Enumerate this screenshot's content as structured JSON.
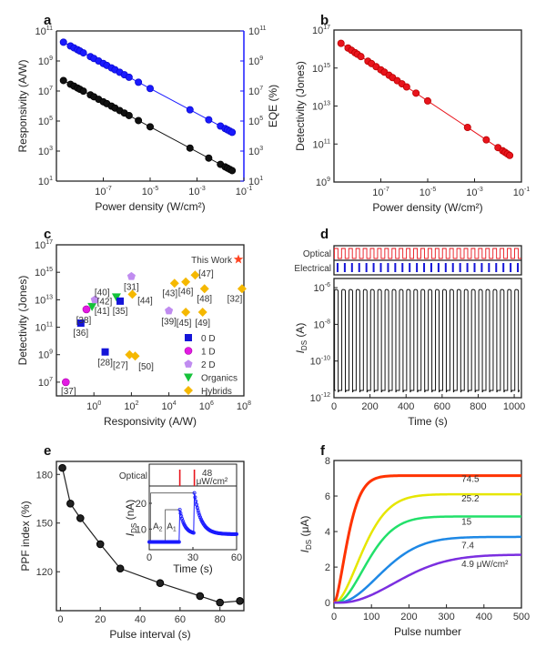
{
  "chart_data": [
    {
      "panel": "a",
      "type": "scatter",
      "xscale": "log",
      "xlabel": "Power density (W/cm²)",
      "ylabel": "Responsivity (A/W)",
      "y2label": "EQE (%)",
      "xlim_exp": [
        -9,
        -1
      ],
      "ylim_exp": [
        1,
        11
      ],
      "y2lim_exp": [
        1,
        11
      ],
      "xticks_exp": [
        -7,
        -5,
        -3,
        -1
      ],
      "yticks_exp": [
        1,
        3,
        5,
        7,
        9,
        11
      ],
      "y2ticks_exp": [
        1,
        3,
        5,
        7,
        9,
        11
      ],
      "x_exp": [
        -8.7,
        -8.4,
        -8.25,
        -8.1,
        -8.0,
        -7.85,
        -7.55,
        -7.4,
        -7.2,
        -7.0,
        -6.85,
        -6.65,
        -6.5,
        -6.3,
        -6.1,
        -5.9,
        -5.5,
        -5.0,
        -3.3,
        -2.5,
        -2.0,
        -1.8,
        -1.7,
        -1.6,
        -1.5
      ],
      "series": [
        {
          "name": "Responsivity",
          "axis": "left",
          "color": "#111111",
          "y_exp_start": 7.7,
          "y_exp_end": 1.7
        },
        {
          "name": "EQE",
          "axis": "right",
          "color": "#1a1aff",
          "y_exp_start": 10.25,
          "y_exp_end": 4.25
        }
      ]
    },
    {
      "panel": "b",
      "type": "scatter",
      "xscale": "log",
      "xlabel": "Power density (W/cm²)",
      "ylabel": "Detectivity (Jones)",
      "xlim_exp": [
        -9,
        -1
      ],
      "ylim_exp": [
        9,
        17
      ],
      "xticks_exp": [
        -7,
        -5,
        -3,
        -1
      ],
      "yticks_exp": [
        9,
        11,
        13,
        15,
        17
      ],
      "series": [
        {
          "name": "Detectivity",
          "color": "#e8141c",
          "y_exp_start": 16.3,
          "y_exp_end": 10.4
        }
      ]
    },
    {
      "panel": "c",
      "type": "scatter",
      "xlabel": "Responsivity (A/W)",
      "ylabel": "Detectivity (Jones)",
      "xlim_exp": [
        -2,
        8
      ],
      "ylim_exp": [
        6,
        17
      ],
      "xticks_exp": [
        0,
        2,
        4,
        6,
        8
      ],
      "yticks_exp": [
        7,
        9,
        11,
        13,
        15,
        17
      ],
      "this_work_label": "This Work",
      "legend": [
        {
          "name": "0 D",
          "marker": "square",
          "color": "#1414d8"
        },
        {
          "name": "1 D",
          "marker": "circle",
          "color": "#e21be2"
        },
        {
          "name": "2 D",
          "marker": "pentagon",
          "color": "#c08cf0"
        },
        {
          "name": "Organics",
          "marker": "triangle-down",
          "color": "#16c23a"
        },
        {
          "name": "Hybrids",
          "marker": "diamond",
          "color": "#f5b800"
        }
      ],
      "points": [
        {
          "ref": "[37]",
          "cls": "1 D",
          "x": -1.5,
          "y": 7.0
        },
        {
          "ref": "[36]",
          "cls": "0 D",
          "x": -0.7,
          "y": 11.3
        },
        {
          "ref": "[38]",
          "cls": "1 D",
          "x": -0.4,
          "y": 12.3
        },
        {
          "ref": "[41]",
          "cls": "Organics",
          "x": -0.1,
          "y": 12.5
        },
        {
          "ref": "[40]",
          "cls": "2 D",
          "x": 0.05,
          "y": 13.0
        },
        {
          "ref": "[42]",
          "cls": "Organics",
          "x": 1.2,
          "y": 13.2
        },
        {
          "ref": "[35]",
          "cls": "0 D",
          "x": 1.4,
          "y": 12.9
        },
        {
          "ref": "[28]",
          "cls": "0 D",
          "x": 0.6,
          "y": 9.2
        },
        {
          "ref": "[31]",
          "cls": "2 D",
          "x": 2.0,
          "y": 14.7
        },
        {
          "ref": "[44]",
          "cls": "Hybrids",
          "x": 2.05,
          "y": 13.4
        },
        {
          "ref": "[27]",
          "cls": "Hybrids",
          "x": 1.9,
          "y": 9.0
        },
        {
          "ref": "[50]",
          "cls": "Hybrids",
          "x": 2.2,
          "y": 8.9
        },
        {
          "ref": "[39]",
          "cls": "2 D",
          "x": 4.0,
          "y": 12.2
        },
        {
          "ref": "[43]",
          "cls": "Hybrids",
          "x": 4.3,
          "y": 14.2
        },
        {
          "ref": "[46]",
          "cls": "Hybrids",
          "x": 4.9,
          "y": 14.3
        },
        {
          "ref": "[47]",
          "cls": "Hybrids",
          "x": 5.4,
          "y": 14.8
        },
        {
          "ref": "[45]",
          "cls": "Hybrids",
          "x": 4.9,
          "y": 12.1
        },
        {
          "ref": "[48]",
          "cls": "Hybrids",
          "x": 5.9,
          "y": 13.8
        },
        {
          "ref": "[49]",
          "cls": "Hybrids",
          "x": 5.8,
          "y": 12.1
        },
        {
          "ref": "[32]",
          "cls": "Hybrids",
          "x": 7.9,
          "y": 13.8
        },
        {
          "ref": "This Work",
          "cls": "This Work",
          "x": 8.0,
          "y": 16.0
        }
      ]
    },
    {
      "panel": "d",
      "type": "line",
      "xlabel": "Time (s)",
      "ylabel": "I_DS (A)",
      "xlim": [
        0,
        1040
      ],
      "ylim_exp": [
        -12,
        -5.5
      ],
      "xticks": [
        0,
        200,
        400,
        600,
        800,
        1000
      ],
      "yticks_exp": [
        -12,
        -10,
        -8,
        -6
      ],
      "pulses": 26,
      "on_level_exp": -6.1,
      "off_level_exp": -11.6,
      "optical_label": "Optical",
      "electrical_label": "Electrical",
      "optical_color": "#e8141c",
      "electrical_color": "#1414d8"
    },
    {
      "panel": "e",
      "type": "line",
      "xlabel": "Pulse interval (s)",
      "ylabel": "PPF index (%)",
      "xlim": [
        -2,
        92
      ],
      "ylim": [
        96,
        188
      ],
      "xticks": [
        0,
        20,
        40,
        60,
        80
      ],
      "yticks": [
        120,
        150,
        180
      ],
      "x": [
        1,
        5,
        10,
        20,
        30,
        50,
        70,
        80,
        90
      ],
      "y": [
        184,
        162,
        153,
        137,
        122,
        113,
        105,
        101,
        102
      ],
      "inset": {
        "xlabel": "Time (s)",
        "ylabel": "I_DS (nA)",
        "xlim": [
          0,
          60
        ],
        "ylim": [
          2,
          26
        ],
        "xticks": [
          0,
          30,
          60
        ],
        "yticks": [
          10,
          20
        ],
        "optical_label": "Optical",
        "intensity_label": "48",
        "intensity_unit": "μW/cm²",
        "pulse_times": [
          21,
          31
        ],
        "baseline": 5,
        "peak1": 17.5,
        "peak2": 24,
        "A1_label": "A1",
        "A2_label": "A2"
      }
    },
    {
      "panel": "f",
      "type": "line",
      "xlabel": "Pulse number",
      "ylabel": "I_DS (μA)",
      "xlim": [
        0,
        500
      ],
      "ylim": [
        -0.3,
        8
      ],
      "xticks": [
        0,
        100,
        200,
        300,
        400,
        500
      ],
      "yticks": [
        0,
        2,
        4,
        6,
        8
      ],
      "series": [
        {
          "name": "74.5",
          "color": "#ff3300",
          "sat": 7.15,
          "tau": 45,
          "delay": 5,
          "n": 1.5
        },
        {
          "name": "25.2",
          "color": "#e6e600",
          "sat": 6.1,
          "tau": 95,
          "delay": 10,
          "n": 1.7
        },
        {
          "name": "15",
          "color": "#22e06a",
          "sat": 4.85,
          "tau": 105,
          "delay": 25,
          "n": 1.8
        },
        {
          "name": "7.4",
          "color": "#1e88e5",
          "sat": 3.7,
          "tau": 150,
          "delay": 40,
          "n": 1.9
        },
        {
          "name": "4.9 μW/cm²",
          "color": "#7b2fe0",
          "sat": 2.7,
          "tau": 200,
          "delay": 55,
          "n": 2.0
        }
      ]
    }
  ],
  "panel_labels": [
    "a",
    "b",
    "c",
    "d",
    "e",
    "f"
  ]
}
